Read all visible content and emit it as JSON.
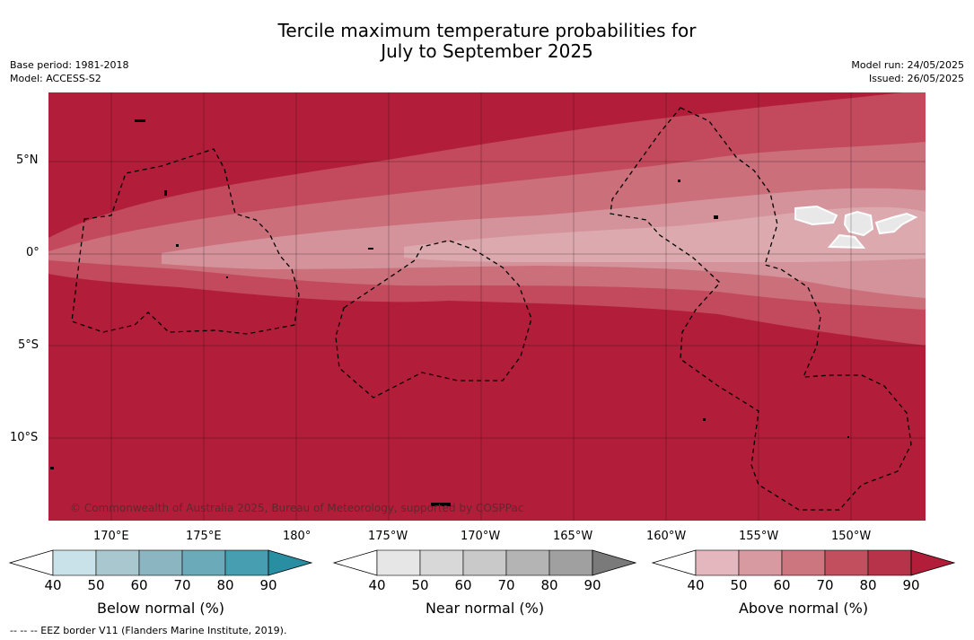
{
  "title_line1": "Tercile maximum temperature probabilities for",
  "title_line2": "July to September 2025",
  "left_meta": [
    "Base period: 1981-2018",
    "Model: ACCESS-S2"
  ],
  "right_meta": [
    "Model run: 24/05/2025",
    "Issued: 26/05/2025"
  ],
  "lat_labels": [
    "5°N",
    "0°",
    "5°S",
    "10°S"
  ],
  "lon_labels": [
    "170°E",
    "175°E",
    "180°",
    "175°W",
    "170°W",
    "165°W",
    "160°W",
    "155°W",
    "150°W"
  ],
  "copyright": "© Commonwealth of Australia 2025, Bureau of Meteorology, supported by COSPPac",
  "footnote": "-- -- -- EEZ border V11 (Flanders Marine Institute, 2019).",
  "colorbars": [
    {
      "name": "below",
      "label": "Below normal (%)",
      "ticks": [
        "40",
        "50",
        "60",
        "70",
        "80",
        "90"
      ],
      "colors": [
        "#ffffff",
        "#c9e1e8",
        "#a9c7cf",
        "#8bb6c1",
        "#6aaab9",
        "#469eb0",
        "#2a8ea3"
      ]
    },
    {
      "name": "near",
      "label": "Near normal (%)",
      "ticks": [
        "40",
        "50",
        "60",
        "70",
        "80",
        "90"
      ],
      "colors": [
        "#ffffff",
        "#e6e6e6",
        "#d8d8d8",
        "#c9c9c9",
        "#b4b4b4",
        "#a0a0a0",
        "#7a7a7a"
      ]
    },
    {
      "name": "above",
      "label": "Above normal (%)",
      "ticks": [
        "40",
        "50",
        "60",
        "70",
        "80",
        "90"
      ],
      "colors": [
        "#ffffff",
        "#e3b7bd",
        "#d89aa1",
        "#cc767f",
        "#c14f5e",
        "#b73349",
        "#b21e3a"
      ]
    }
  ],
  "map_colors": {
    "a40": "#e8e8e8",
    "a50": "#dba9ae",
    "a60": "#d4939b",
    "a70": "#cb6f7b",
    "a80": "#c24a5c",
    "a90": "#b21e3a"
  }
}
